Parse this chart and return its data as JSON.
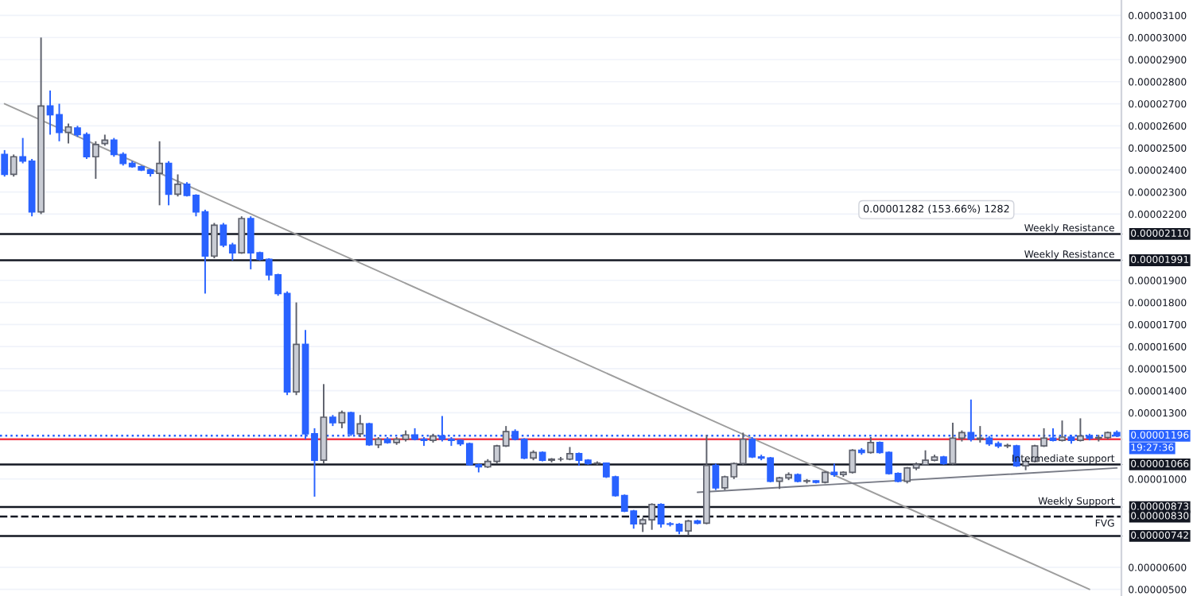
{
  "chart_data": {
    "type": "candlestick",
    "categories": [
      null,
      null,
      null,
      null,
      null,
      null,
      null,
      null,
      null,
      null,
      null,
      null,
      null,
      null,
      null,
      null,
      null,
      null,
      null,
      null,
      null,
      null,
      null,
      null,
      null,
      null,
      null,
      null,
      null,
      null,
      null,
      null,
      null,
      null,
      null,
      null,
      null,
      null,
      null,
      null,
      null,
      null,
      null,
      null,
      null,
      null,
      null,
      null,
      null,
      null,
      null,
      null,
      null,
      null,
      null,
      null,
      null,
      null,
      null,
      null,
      null,
      null,
      null,
      null,
      null,
      null,
      null,
      null,
      null,
      null,
      null,
      null,
      null,
      null,
      null,
      null,
      null,
      null,
      null,
      null,
      null,
      null,
      null,
      null,
      null,
      null,
      null,
      null,
      null,
      null,
      null,
      null,
      null,
      null,
      null,
      null,
      null,
      null,
      null,
      null,
      null,
      null,
      null,
      null,
      null,
      null,
      null,
      null,
      null,
      null,
      null,
      null,
      null,
      null,
      null,
      null,
      null,
      null,
      null,
      null,
      null,
      null,
      null
    ],
    "ohlc": [
      [
        2.47e-05,
        2.49e-05,
        2.37e-05,
        2.38e-05
      ],
      [
        2.38e-05,
        2.47e-05,
        2.37e-05,
        2.46e-05
      ],
      [
        2.46e-05,
        2.545e-05,
        2.43e-05,
        2.44e-05
      ],
      [
        2.44e-05,
        2.45e-05,
        2.19e-05,
        2.21e-05
      ],
      [
        2.21e-05,
        3e-05,
        2.2e-05,
        2.69e-05
      ],
      [
        2.69e-05,
        2.76e-05,
        2.56e-05,
        2.65e-05
      ],
      [
        2.65e-05,
        2.7e-05,
        2.53e-05,
        2.57e-05
      ],
      [
        2.57e-05,
        2.61e-05,
        2.52e-05,
        2.595e-05
      ],
      [
        2.59e-05,
        2.6e-05,
        2.55e-05,
        2.56e-05
      ],
      [
        2.56e-05,
        2.57e-05,
        2.45e-05,
        2.46e-05
      ],
      [
        2.46e-05,
        2.53e-05,
        2.36e-05,
        2.515e-05
      ],
      [
        2.52e-05,
        2.56e-05,
        2.51e-05,
        2.535e-05
      ],
      [
        2.535e-05,
        2.545e-05,
        2.46e-05,
        2.47e-05
      ],
      [
        2.47e-05,
        2.48e-05,
        2.42e-05,
        2.43e-05
      ],
      [
        2.43e-05,
        2.44e-05,
        2.41e-05,
        2.415e-05
      ],
      [
        2.415e-05,
        2.42e-05,
        2.395e-05,
        2.4e-05
      ],
      [
        2.4e-05,
        2.405e-05,
        2.37e-05,
        2.385e-05
      ],
      [
        2.385e-05,
        2.53e-05,
        2.24e-05,
        2.43e-05
      ],
      [
        2.43e-05,
        2.44e-05,
        2.24e-05,
        2.29e-05
      ],
      [
        2.29e-05,
        2.38e-05,
        2.28e-05,
        2.335e-05
      ],
      [
        2.335e-05,
        2.345e-05,
        2.28e-05,
        2.285e-05
      ],
      [
        2.285e-05,
        2.29e-05,
        2.19e-05,
        2.21e-05
      ],
      [
        2.21e-05,
        2.22e-05,
        1.84e-05,
        2.01e-05
      ],
      [
        2.01e-05,
        2.16e-05,
        2e-05,
        2.15e-05
      ],
      [
        2.15e-05,
        2.16e-05,
        2.05e-05,
        2.06e-05
      ],
      [
        2.06e-05,
        2.07e-05,
        1.99e-05,
        2.025e-05
      ],
      [
        2.025e-05,
        2.19e-05,
        2.02e-05,
        2.18e-05
      ],
      [
        2.18e-05,
        2.19e-05,
        1.95e-05,
        2.025e-05
      ],
      [
        2.025e-05,
        2.03e-05,
        1.99e-05,
        1.995e-05
      ],
      [
        1.995e-05,
        2e-05,
        1.9e-05,
        1.925e-05
      ],
      [
        1.925e-05,
        1.93e-05,
        1.83e-05,
        1.84e-05
      ],
      [
        1.84e-05,
        1.85e-05,
        1.38e-05,
        1.395e-05
      ],
      [
        1.395e-05,
        1.8e-05,
        1.38e-05,
        1.61e-05
      ],
      [
        1.61e-05,
        1.675e-05,
        1.18e-05,
        1.205e-05
      ],
      [
        1.205e-05,
        1.23e-05,
        9.2e-06,
        1.085e-05
      ],
      [
        1.085e-05,
        1.43e-05,
        1.07e-05,
        1.28e-05
      ],
      [
        1.28e-05,
        1.29e-05,
        1.24e-05,
        1.255e-05
      ],
      [
        1.255e-05,
        1.31e-05,
        1.23e-05,
        1.3e-05
      ],
      [
        1.3e-05,
        1.305e-05,
        1.195e-05,
        1.205e-05
      ],
      [
        1.205e-05,
        1.29e-05,
        1.19e-05,
        1.25e-05
      ],
      [
        1.25e-05,
        1.255e-05,
        1.15e-05,
        1.155e-05
      ],
      [
        1.155e-05,
        1.19e-05,
        1.14e-05,
        1.18e-05
      ],
      [
        1.18e-05,
        1.19e-05,
        1.16e-05,
        1.165e-05
      ],
      [
        1.165e-05,
        1.19e-05,
        1.155e-05,
        1.18e-05
      ],
      [
        1.18e-05,
        1.22e-05,
        1.17e-05,
        1.2e-05
      ],
      [
        1.2e-05,
        1.23e-05,
        1.175e-05,
        1.18e-05
      ],
      [
        1.18e-05,
        1.19e-05,
        1.15e-05,
        1.175e-05
      ],
      [
        1.175e-05,
        1.205e-05,
        1.165e-05,
        1.195e-05
      ],
      [
        1.195e-05,
        1.285e-05,
        1.17e-05,
        1.18e-05
      ],
      [
        1.18e-05,
        1.19e-05,
        1.15e-05,
        1.175e-05
      ],
      [
        1.175e-05,
        1.18e-05,
        1.15e-05,
        1.16e-05
      ],
      [
        1.16e-05,
        1.165e-05,
        1.06e-05,
        1.065e-05
      ],
      [
        1.065e-05,
        1.07e-05,
        1.03e-05,
        1.055e-05
      ],
      [
        1.055e-05,
        1.09e-05,
        1.05e-05,
        1.08e-05
      ],
      [
        1.08e-05,
        1.155e-05,
        1.07e-05,
        1.15e-05
      ],
      [
        1.15e-05,
        1.24e-05,
        1.145e-05,
        1.215e-05
      ],
      [
        1.215e-05,
        1.225e-05,
        1.175e-05,
        1.18e-05
      ],
      [
        1.18e-05,
        1.185e-05,
        1.09e-05,
        1.095e-05
      ],
      [
        1.095e-05,
        1.13e-05,
        1.085e-05,
        1.12e-05
      ],
      [
        1.12e-05,
        1.125e-05,
        1.08e-05,
        1.085e-05
      ],
      [
        1.085e-05,
        1.095e-05,
        1.075e-05,
        1.09e-05
      ],
      [
        1.09e-05,
        1.1e-05,
        1.08e-05,
        1.09e-05
      ],
      [
        1.09e-05,
        1.145e-05,
        1.085e-05,
        1.115e-05
      ],
      [
        1.115e-05,
        1.12e-05,
        1.06e-05,
        1.085e-05
      ],
      [
        1.085e-05,
        1.09e-05,
        1.065e-05,
        1.07e-05
      ],
      [
        1.07e-05,
        1.08e-05,
        1.06e-05,
        1.072e-05
      ],
      [
        1.072e-05,
        1.075e-05,
        1.005e-05,
        1.01e-05
      ],
      [
        1.01e-05,
        1.015e-05,
        9.2e-06,
        9.25e-06
      ],
      [
        9.25e-06,
        9.3e-06,
        8.5e-06,
        8.55e-06
      ],
      [
        8.55e-06,
        8.6e-06,
        7.75e-06,
        7.97e-06
      ],
      [
        7.97e-06,
        8.25e-06,
        7.6e-06,
        8.15e-06
      ],
      [
        8.15e-06,
        8.9e-06,
        7.7e-06,
        8.85e-06
      ],
      [
        8.85e-06,
        8.9e-06,
        7.8e-06,
        7.97e-06
      ],
      [
        7.97e-06,
        8.05e-06,
        7.85e-06,
        7.95e-06
      ],
      [
        7.95e-06,
        8e-06,
        7.5e-06,
        7.65e-06
      ],
      [
        7.65e-06,
        8.15e-06,
        7.45e-06,
        8.1e-06
      ],
      [
        8.1e-06,
        8.15e-06,
        7.95e-06,
        8e-06
      ],
      [
        8e-06,
        1.2e-05,
        7.95e-06,
        1.062e-05
      ],
      [
        1.062e-05,
        1.07e-05,
        9.5e-06,
        9.6e-06
      ],
      [
        9.6e-06,
        1.015e-05,
        9.5e-06,
        1.01e-05
      ],
      [
        1.01e-05,
        1.075e-05,
        1e-05,
        1.07e-05
      ],
      [
        1.07e-05,
        1.21e-05,
        1.06e-05,
        1.18e-05
      ],
      [
        1.18e-05,
        1.19e-05,
        1.095e-05,
        1.1e-05
      ],
      [
        1.1e-05,
        1.11e-05,
        1.085e-05,
        1.095e-05
      ],
      [
        1.095e-05,
        1.1e-05,
        9.85e-06,
        9.9e-06
      ],
      [
        9.9e-06,
        1.01e-05,
        9.55e-06,
        1.005e-05
      ],
      [
        1.005e-05,
        1.03e-05,
        9.95e-06,
        1.02e-05
      ],
      [
        1.02e-05,
        1.025e-05,
        9.85e-06,
        9.9e-06
      ],
      [
        9.9e-06,
        1e-05,
        9.8e-06,
        9.92e-06
      ],
      [
        9.92e-06,
        9.95e-06,
        9.8e-06,
        9.85e-06
      ],
      [
        9.85e-06,
        1.035e-05,
        9.8e-06,
        1.03e-05
      ],
      [
        1.03e-05,
        1.07e-05,
        1.01e-05,
        1.02e-05
      ],
      [
        1.02e-05,
        1.035e-05,
        1.01e-05,
        1.03e-05
      ],
      [
        1.03e-05,
        1.135e-05,
        1.025e-05,
        1.13e-05
      ],
      [
        1.13e-05,
        1.14e-05,
        1.11e-05,
        1.12e-05
      ],
      [
        1.12e-05,
        1.19e-05,
        1.115e-05,
        1.165e-05
      ],
      [
        1.165e-05,
        1.17e-05,
        1.115e-05,
        1.12e-05
      ],
      [
        1.12e-05,
        1.125e-05,
        1.02e-05,
        1.025e-05
      ],
      [
        1.025e-05,
        1.03e-05,
        9.85e-06,
        9.9e-06
      ],
      [
        9.9e-06,
        1.055e-05,
        9.8e-06,
        1.05e-05
      ],
      [
        1.05e-05,
        1.075e-05,
        1.04e-05,
        1.065e-05
      ],
      [
        1.065e-05,
        1.13e-05,
        1.06e-05,
        1.085e-05
      ],
      [
        1.085e-05,
        1.11e-05,
        1.08e-05,
        1.1e-05
      ],
      [
        1.1e-05,
        1.105e-05,
        1.065e-05,
        1.07e-05
      ],
      [
        1.07e-05,
        1.255e-05,
        1.065e-05,
        1.185e-05
      ],
      [
        1.185e-05,
        1.22e-05,
        1.17e-05,
        1.21e-05
      ],
      [
        1.21e-05,
        1.36e-05,
        1.17e-05,
        1.18e-05
      ],
      [
        1.18e-05,
        1.24e-05,
        1.165e-05,
        1.185e-05
      ],
      [
        1.185e-05,
        1.195e-05,
        1.15e-05,
        1.16e-05
      ],
      [
        1.16e-05,
        1.17e-05,
        1.14e-05,
        1.15e-05
      ],
      [
        1.15e-05,
        1.16e-05,
        1.14e-05,
        1.152e-05
      ],
      [
        1.15e-05,
        1.155e-05,
        1.055e-05,
        1.06e-05
      ],
      [
        1.06e-05,
        1.09e-05,
        1.04e-05,
        1.08e-05
      ],
      [
        1.08e-05,
        1.155e-05,
        1.075e-05,
        1.15e-05
      ],
      [
        1.15e-05,
        1.23e-05,
        1.145e-05,
        1.185e-05
      ],
      [
        1.185e-05,
        1.23e-05,
        1.17e-05,
        1.175e-05
      ],
      [
        1.175e-05,
        1.265e-05,
        1.17e-05,
        1.19e-05
      ],
      [
        1.19e-05,
        1.2e-05,
        1.16e-05,
        1.175e-05
      ],
      [
        1.175e-05,
        1.275e-05,
        1.17e-05,
        1.195e-05
      ],
      [
        1.195e-05,
        1.205e-05,
        1.175e-05,
        1.185e-05
      ],
      [
        1.185e-05,
        1.2e-05,
        1.17e-05,
        1.188e-05
      ],
      [
        1.188e-05,
        1.215e-05,
        1.18e-05,
        1.21e-05
      ],
      [
        1.21e-05,
        1.22e-05,
        1.19e-05,
        1.196e-05
      ]
    ],
    "series": [
      {
        "type": "line",
        "color": "#9e9e9e",
        "values": [
          2.7e-05,
          null,
          null,
          null,
          null,
          null,
          null,
          null,
          null,
          null,
          null,
          null,
          null,
          null,
          null,
          null,
          null,
          null,
          null,
          null,
          null,
          null,
          null,
          null,
          null,
          null,
          null,
          null,
          null,
          null,
          null,
          null,
          null,
          null,
          null,
          null,
          null,
          null,
          null,
          null,
          null,
          null,
          null,
          null,
          null,
          null,
          null,
          null,
          null,
          null,
          null,
          null,
          null,
          null,
          null,
          null,
          null,
          null,
          null,
          null,
          null,
          null,
          null,
          null,
          null,
          null,
          null,
          null,
          null,
          null,
          null,
          null,
          null,
          null,
          null,
          null,
          null,
          null,
          null,
          null,
          null,
          null,
          null,
          null,
          null,
          null,
          null,
          null,
          null,
          null,
          null,
          null,
          null,
          null,
          null,
          null,
          null,
          null,
          null,
          null,
          null,
          null,
          null,
          null,
          null,
          null,
          null,
          null,
          null,
          null,
          null,
          null,
          null,
          null,
          null,
          null,
          null,
          null,
          null,
          5e-06,
          null,
          null,
          null
        ]
      },
      {
        "type": "line",
        "color": "#787b86",
        "values": [
          null,
          null,
          null,
          null,
          null,
          null,
          null,
          null,
          null,
          null,
          null,
          null,
          null,
          null,
          null,
          null,
          null,
          null,
          null,
          null,
          null,
          null,
          null,
          null,
          null,
          null,
          null,
          null,
          null,
          null,
          null,
          null,
          null,
          null,
          null,
          null,
          null,
          null,
          null,
          null,
          null,
          null,
          null,
          null,
          null,
          null,
          null,
          null,
          null,
          null,
          null,
          null,
          null,
          null,
          null,
          null,
          null,
          null,
          null,
          null,
          null,
          null,
          null,
          null,
          null,
          null,
          null,
          null,
          null,
          null,
          null,
          null,
          null,
          null,
          null,
          null,
          9.4e-06,
          null,
          null,
          null,
          null,
          null,
          null,
          null,
          null,
          null,
          null,
          null,
          null,
          null,
          null,
          null,
          null,
          null,
          null,
          null,
          null,
          null,
          null,
          null,
          null,
          null,
          null,
          null,
          null,
          null,
          null,
          null,
          null,
          null,
          null,
          null,
          null,
          null,
          null,
          null,
          null,
          null,
          null,
          null,
          null,
          null,
          1.05e-05
        ]
      }
    ],
    "ylim": [
      4.7e-06,
      3.17e-05
    ],
    "yticks": [
      {
        "value": 5e-06,
        "label": "0.00000500"
      },
      {
        "value": 6e-06,
        "label": "0.00000600"
      },
      {
        "value": 1e-05,
        "label": "0.00001000"
      },
      {
        "value": 1.3e-05,
        "label": "0.00001300"
      },
      {
        "value": 1.4e-05,
        "label": "0.00001400"
      },
      {
        "value": 1.5e-05,
        "label": "0.00001500"
      },
      {
        "value": 1.6e-05,
        "label": "0.00001600"
      },
      {
        "value": 1.7e-05,
        "label": "0.00001700"
      },
      {
        "value": 1.8e-05,
        "label": "0.00001800"
      },
      {
        "value": 1.9e-05,
        "label": "0.00001900"
      },
      {
        "value": 2.2e-05,
        "label": "0.00002200"
      },
      {
        "value": 2.3e-05,
        "label": "0.00002300"
      },
      {
        "value": 2.4e-05,
        "label": "0.00002400"
      },
      {
        "value": 2.5e-05,
        "label": "0.00002500"
      },
      {
        "value": 2.6e-05,
        "label": "0.00002600"
      },
      {
        "value": 2.7e-05,
        "label": "0.00002700"
      },
      {
        "value": 2.8e-05,
        "label": "0.00002800"
      },
      {
        "value": 2.9e-05,
        "label": "0.00002900"
      },
      {
        "value": 3e-05,
        "label": "0.00003000"
      },
      {
        "value": 3.1e-05,
        "label": "0.00003100"
      }
    ],
    "tick_labels": "y",
    "grid": "y",
    "ref_lines": [
      {
        "axis": "y",
        "value": 2.11e-05,
        "label": "Weekly Resistance"
      },
      {
        "axis": "y",
        "value": 1.991e-05,
        "label": "Weekly Resistance"
      },
      {
        "axis": "y",
        "value": 1.066e-05,
        "label": "Intermediate support"
      },
      {
        "axis": "y",
        "value": 8.73e-06,
        "label": "Weekly Support"
      },
      {
        "axis": "y",
        "value": 8.3e-06,
        "label": "FVG",
        "line_style": "dashed"
      },
      {
        "axis": "y",
        "value": 7.42e-06
      },
      {
        "axis": "y",
        "value": 1.18e-05,
        "color": "#f23645"
      },
      {
        "axis": "y",
        "value": 1.196e-05,
        "color": "#2962ff",
        "line_style": "dotted"
      }
    ],
    "annotations": [
      "0.00001282 (153.66%) 1282",
      "19:27:36",
      "0.00002110",
      "0.00001991",
      "0.00001196",
      "0.00001066",
      "0.00000873",
      "0.00000830",
      "0.00000742"
    ]
  }
}
